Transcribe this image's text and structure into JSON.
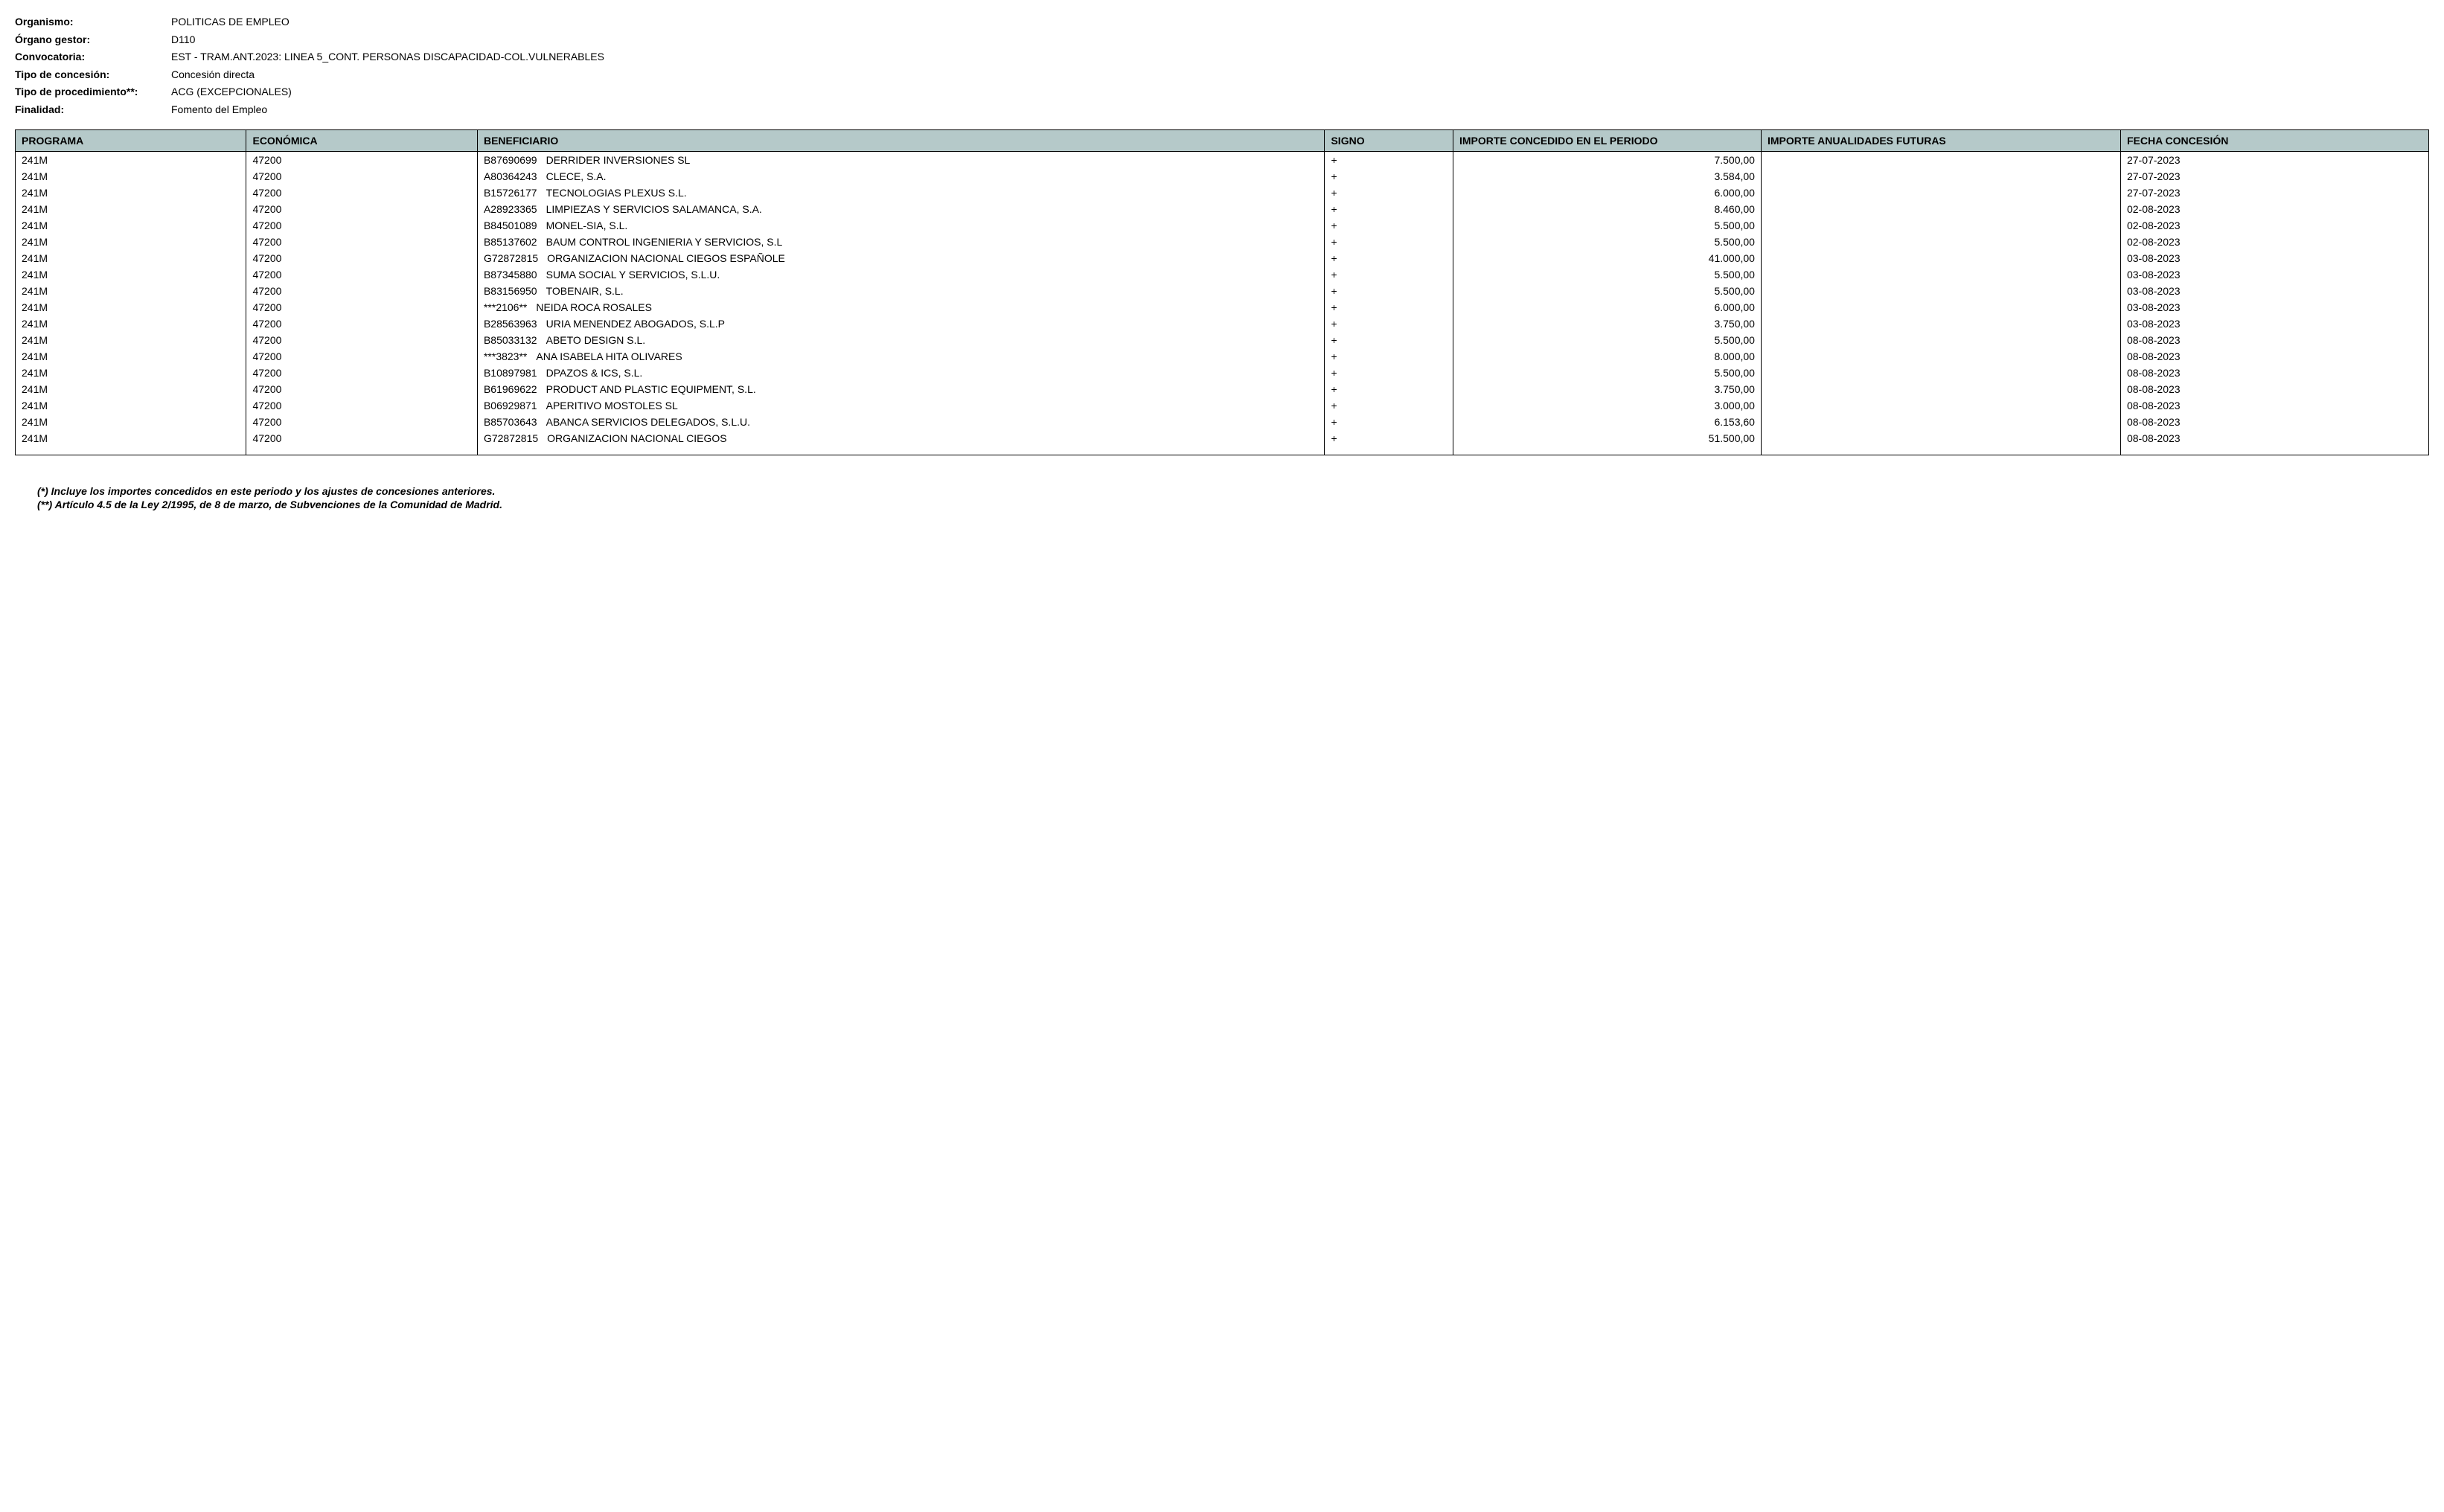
{
  "header": {
    "labels": {
      "organismo": "Organismo:",
      "organo_gestor": "Órgano gestor:",
      "convocatoria": "Convocatoria:",
      "tipo_concesion": "Tipo de concesión:",
      "tipo_procedimiento": "Tipo de procedimiento**:",
      "finalidad": "Finalidad:"
    },
    "values": {
      "organismo": "POLITICAS DE EMPLEO",
      "organo_gestor": "D110",
      "convocatoria": "EST - TRAM.ANT.2023: LINEA 5_CONT. PERSONAS DISCAPACIDAD-COL.VULNERABLES",
      "tipo_concesion": "Concesión directa",
      "tipo_procedimiento": "ACG (EXCEPCIONALES)",
      "finalidad": "Fomento del Empleo"
    }
  },
  "table": {
    "columns": {
      "programa": "PROGRAMA",
      "economica": "ECONÓMICA",
      "beneficiario": "BENEFICIARIO",
      "signo": "SIGNO",
      "importe_periodo": "IMPORTE CONCEDIDO EN EL PERIODO",
      "importe_futuras": "IMPORTE ANUALIDADES FUTURAS",
      "fecha": "FECHA CONCESIÓN"
    },
    "rows": [
      {
        "programa": "241M",
        "economica": "47200",
        "benef_id": "B87690699",
        "benef_name": "DERRIDER INVERSIONES SL",
        "signo": "+",
        "importe_periodo": "7.500,00",
        "importe_futuras": "",
        "fecha": "27-07-2023"
      },
      {
        "programa": "241M",
        "economica": "47200",
        "benef_id": "A80364243",
        "benef_name": "CLECE, S.A.",
        "signo": "+",
        "importe_periodo": "3.584,00",
        "importe_futuras": "",
        "fecha": "27-07-2023"
      },
      {
        "programa": "241M",
        "economica": "47200",
        "benef_id": "B15726177",
        "benef_name": "TECNOLOGIAS PLEXUS S.L.",
        "signo": "+",
        "importe_periodo": "6.000,00",
        "importe_futuras": "",
        "fecha": "27-07-2023"
      },
      {
        "programa": "241M",
        "economica": "47200",
        "benef_id": "A28923365",
        "benef_name": "LIMPIEZAS Y SERVICIOS SALAMANCA, S.A.",
        "signo": "+",
        "importe_periodo": "8.460,00",
        "importe_futuras": "",
        "fecha": "02-08-2023"
      },
      {
        "programa": "241M",
        "economica": "47200",
        "benef_id": "B84501089",
        "benef_name": "MONEL-SIA, S.L.",
        "signo": "+",
        "importe_periodo": "5.500,00",
        "importe_futuras": "",
        "fecha": "02-08-2023"
      },
      {
        "programa": "241M",
        "economica": "47200",
        "benef_id": "B85137602",
        "benef_name": "BAUM CONTROL INGENIERIA Y SERVICIOS, S.L",
        "signo": "+",
        "importe_periodo": "5.500,00",
        "importe_futuras": "",
        "fecha": "02-08-2023"
      },
      {
        "programa": "241M",
        "economica": "47200",
        "benef_id": "G72872815",
        "benef_name": "ORGANIZACION NACIONAL  CIEGOS ESPAÑOLE",
        "signo": "+",
        "importe_periodo": "41.000,00",
        "importe_futuras": "",
        "fecha": "03-08-2023"
      },
      {
        "programa": "241M",
        "economica": "47200",
        "benef_id": "B87345880",
        "benef_name": "SUMA SOCIAL Y SERVICIOS, S.L.U.",
        "signo": "+",
        "importe_periodo": "5.500,00",
        "importe_futuras": "",
        "fecha": "03-08-2023"
      },
      {
        "programa": "241M",
        "economica": "47200",
        "benef_id": "B83156950",
        "benef_name": "TOBENAIR, S.L.",
        "signo": "+",
        "importe_periodo": "5.500,00",
        "importe_futuras": "",
        "fecha": "03-08-2023"
      },
      {
        "programa": "241M",
        "economica": "47200",
        "benef_id": "***2106**",
        "benef_name": "NEIDA ROCA ROSALES",
        "signo": "+",
        "importe_periodo": "6.000,00",
        "importe_futuras": "",
        "fecha": "03-08-2023"
      },
      {
        "programa": "241M",
        "economica": "47200",
        "benef_id": "B28563963",
        "benef_name": "URIA MENENDEZ ABOGADOS, S.L.P",
        "signo": "+",
        "importe_periodo": "3.750,00",
        "importe_futuras": "",
        "fecha": "03-08-2023"
      },
      {
        "programa": "241M",
        "economica": "47200",
        "benef_id": "B85033132",
        "benef_name": "ABETO DESIGN S.L.",
        "signo": "+",
        "importe_periodo": "5.500,00",
        "importe_futuras": "",
        "fecha": "08-08-2023"
      },
      {
        "programa": "241M",
        "economica": "47200",
        "benef_id": "***3823**",
        "benef_name": "ANA ISABELA HITA OLIVARES",
        "signo": "+",
        "importe_periodo": "8.000,00",
        "importe_futuras": "",
        "fecha": "08-08-2023"
      },
      {
        "programa": "241M",
        "economica": "47200",
        "benef_id": "B10897981",
        "benef_name": "DPAZOS & ICS, S.L.",
        "signo": "+",
        "importe_periodo": "5.500,00",
        "importe_futuras": "",
        "fecha": "08-08-2023"
      },
      {
        "programa": "241M",
        "economica": "47200",
        "benef_id": "B61969622",
        "benef_name": "PRODUCT AND PLASTIC EQUIPMENT, S.L.",
        "signo": "+",
        "importe_periodo": "3.750,00",
        "importe_futuras": "",
        "fecha": "08-08-2023"
      },
      {
        "programa": "241M",
        "economica": "47200",
        "benef_id": "B06929871",
        "benef_name": "APERITIVO MOSTOLES SL",
        "signo": "+",
        "importe_periodo": "3.000,00",
        "importe_futuras": "",
        "fecha": "08-08-2023"
      },
      {
        "programa": "241M",
        "economica": "47200",
        "benef_id": "B85703643",
        "benef_name": "ABANCA SERVICIOS DELEGADOS, S.L.U.",
        "signo": "+",
        "importe_periodo": "6.153,60",
        "importe_futuras": "",
        "fecha": "08-08-2023"
      },
      {
        "programa": "241M",
        "economica": "47200",
        "benef_id": "G72872815",
        "benef_name": "ORGANIZACION NACIONAL  CIEGOS",
        "signo": "+",
        "importe_periodo": "51.500,00",
        "importe_futuras": "",
        "fecha": "08-08-2023"
      }
    ]
  },
  "footnotes": {
    "note1": "(*) Incluye los importes concedidos en este periodo y los ajustes de concesiones anteriores.",
    "note2": "(**) Artículo 4.5 de la Ley 2/1995, de 8 de marzo, de Subvenciones de la Comunidad de Madrid."
  }
}
